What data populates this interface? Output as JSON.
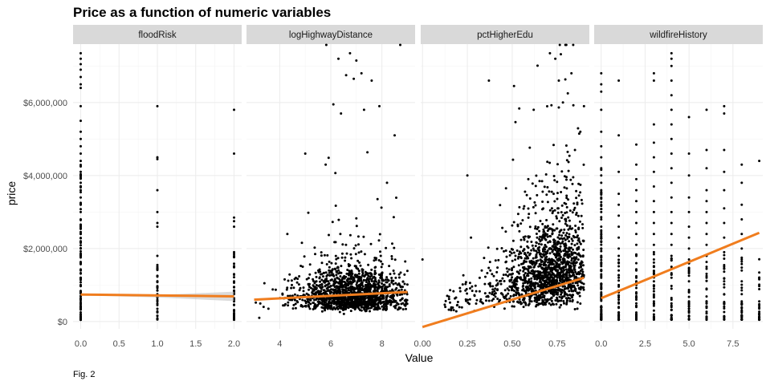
{
  "chart_data": {
    "type": "scatter",
    "title": "Price as a function of numeric variables",
    "xlabel": "Value",
    "ylabel": "price",
    "caption": "Fig. 2",
    "y_ticks": [
      {
        "value": 0,
        "label": "$0"
      },
      {
        "value": 2000000,
        "label": "$2,000,000"
      },
      {
        "value": 4000000,
        "label": "$4,000,000"
      },
      {
        "value": 6000000,
        "label": "$6,000,000"
      }
    ],
    "ylim": [
      -200000,
      7600000
    ],
    "fit_color": "#f07d1e",
    "band_color": "#bdbdbd",
    "point_color": "#000000",
    "panels": [
      {
        "name": "floodRisk",
        "xlim": [
          -0.1,
          2.1
        ],
        "x_ticks": [
          {
            "value": 0,
            "label": "0.0"
          },
          {
            "value": 0.5,
            "label": "0.5"
          },
          {
            "value": 1,
            "label": "1.0"
          },
          {
            "value": 1.5,
            "label": "1.5"
          },
          {
            "value": 2,
            "label": "2.0"
          }
        ],
        "fit": {
          "x": [
            0,
            2
          ],
          "y": [
            740000,
            690000
          ]
        },
        "band": {
          "x": [
            0,
            1,
            2
          ],
          "lower": [
            720000,
            660000,
            560000
          ],
          "upper": [
            760000,
            730000,
            820000
          ]
        },
        "groups": [
          {
            "x": 0,
            "y": [
              7350000,
              7200000,
              7050000,
              6900000,
              6700000,
              6500000,
              6400000,
              5900000,
              5500000,
              5200000,
              5000000,
              4800000,
              4600000,
              4400000,
              4250000,
              4100000,
              4000000,
              3800000,
              3600000,
              3400000,
              3200000,
              3000000,
              2800000,
              2600000,
              2400000,
              2200000,
              2000000,
              1800000,
              1600000,
              1400000,
              1200000,
              1000000,
              800000,
              600000,
              400000,
              200000,
              50000
            ]
          },
          {
            "x": 1,
            "y": [
              5900000,
              4500000,
              4450000,
              3600000,
              3000000,
              2700000,
              2600000,
              1800000,
              1500000,
              1250000,
              1100000,
              950000,
              850000,
              750000,
              650000,
              550000,
              450000,
              350000,
              250000
            ]
          },
          {
            "x": 2,
            "y": [
              5800000,
              4600000,
              2850000,
              2750000,
              2600000,
              1900000,
              1500000,
              1300000,
              1100000,
              950000,
              850000,
              750000,
              600000,
              450000,
              300000,
              150000
            ]
          }
        ]
      },
      {
        "name": "logHighwayDistance",
        "xlim": [
          2.7,
          9.3
        ],
        "x_ticks": [
          {
            "value": 4,
            "label": "4"
          },
          {
            "value": 6,
            "label": "6"
          },
          {
            "value": 8,
            "label": "8"
          }
        ],
        "fit": {
          "x": [
            3,
            9
          ],
          "y": [
            600000,
            810000
          ]
        },
        "cloud": {
          "x_min": 3.0,
          "x_max": 9.0,
          "x_center": 6.9,
          "x_spread": 1.1,
          "y_base": 150000,
          "y_median": 550000,
          "count": 1500
        },
        "outliers": [
          [
            6.3,
            7200000
          ],
          [
            6.75,
            7350000
          ],
          [
            7.0,
            7150000
          ],
          [
            6.6,
            6750000
          ],
          [
            6.9,
            6650000
          ],
          [
            7.2,
            6800000
          ],
          [
            7.6,
            6600000
          ],
          [
            6.1,
            5950000
          ],
          [
            6.4,
            5700000
          ],
          [
            7.3,
            5800000
          ],
          [
            7.9,
            5900000
          ],
          [
            8.5,
            5100000
          ],
          [
            5.0,
            4600000
          ],
          [
            4.3,
            2400000
          ],
          [
            3.4,
            1050000
          ],
          [
            3.2,
            100000
          ],
          [
            5.8,
            4300000
          ],
          [
            8.2,
            3800000
          ]
        ]
      },
      {
        "name": "pctHigherEdu",
        "xlim": [
          -0.01,
          0.93
        ],
        "x_ticks": [
          {
            "value": 0,
            "label": "0.00"
          },
          {
            "value": 0.25,
            "label": "0.25"
          },
          {
            "value": 0.5,
            "label": "0.50"
          },
          {
            "value": 0.75,
            "label": "0.75"
          }
        ],
        "fit": {
          "x": [
            0.0,
            0.9
          ],
          "y": [
            -150000,
            1200000
          ]
        },
        "cloud": {
          "x_min": 0.12,
          "x_max": 0.9,
          "x_center": 0.72,
          "x_spread": 0.14,
          "y_base": 150000,
          "y_slope": 1100000,
          "count": 1500
        },
        "outliers": [
          [
            0.0,
            1700000
          ],
          [
            0.25,
            4000000
          ],
          [
            0.27,
            2300000
          ],
          [
            0.37,
            6600000
          ],
          [
            0.51,
            6450000
          ],
          [
            0.71,
            7350000
          ],
          [
            0.74,
            7200000
          ],
          [
            0.76,
            6600000
          ],
          [
            0.83,
            6800000
          ],
          [
            0.59,
            3900000
          ],
          [
            0.81,
            6250000
          ],
          [
            0.62,
            5800000
          ],
          [
            0.9,
            5900000
          ],
          [
            0.88,
            5200000
          ],
          [
            0.85,
            4700000
          ]
        ]
      },
      {
        "name": "wildfireHistory",
        "xlim": [
          -0.4,
          9.2
        ],
        "x_ticks": [
          {
            "value": 0,
            "label": "0.0"
          },
          {
            "value": 2.5,
            "label": "2.5"
          },
          {
            "value": 5,
            "label": "5.0"
          },
          {
            "value": 7.5,
            "label": "7.5"
          }
        ],
        "fit": {
          "x": [
            0,
            9
          ],
          "y": [
            640000,
            2430000
          ]
        },
        "groups": [
          {
            "x": 0,
            "y": [
              6800000,
              6500000,
              6300000,
              5800000,
              5200000,
              4800000,
              4500000,
              4200000,
              4000000,
              3800000,
              3600000,
              3400000,
              3200000,
              3000000,
              2800000,
              2600000,
              2400000,
              2200000,
              2000000,
              1800000,
              1600000,
              1400000,
              1200000,
              1000000,
              800000,
              600000,
              400000,
              200000,
              50000
            ]
          },
          {
            "x": 1,
            "y": [
              6600000,
              5100000,
              4100000,
              3500000,
              3200000,
              2900000,
              2600000,
              2300000,
              2000000,
              1800000,
              1600000,
              1400000,
              1200000,
              1000000,
              800000,
              600000,
              400000,
              250000,
              100000
            ]
          },
          {
            "x": 2,
            "y": [
              4850000,
              4300000,
              3900000,
              3600000,
              3300000,
              3000000,
              2700000,
              2400000,
              2100000,
              1800000,
              1600000,
              1400000,
              1200000,
              1000000,
              800000,
              600000,
              400000,
              200000
            ]
          },
          {
            "x": 3,
            "y": [
              6800000,
              6600000,
              5400000,
              4900000,
              4500000,
              4100000,
              3700000,
              3300000,
              3000000,
              2700000,
              2400000,
              2100000,
              1900000,
              1700000,
              1500000,
              1300000,
              1100000,
              900000,
              700000,
              500000,
              300000
            ]
          },
          {
            "x": 4,
            "y": [
              7350000,
              7200000,
              7000000,
              6600000,
              6200000,
              5800000,
              5400000,
              5000000,
              4600000,
              4200000,
              3800000,
              3400000,
              3000000,
              2700000,
              2400000,
              2100000,
              1800000,
              1500000,
              1200000,
              900000,
              600000,
              400000
            ]
          },
          {
            "x": 5,
            "y": [
              5600000,
              4600000,
              4000000,
              3400000,
              3000000,
              2600000,
              2300000,
              2000000,
              1700000,
              1400000,
              1100000,
              800000,
              500000,
              150000
            ]
          },
          {
            "x": 6,
            "y": [
              5800000,
              4700000,
              4200000,
              3600000,
              3300000,
              3000000,
              2700000,
              2400000,
              2100000,
              1800000,
              1500000,
              1200000,
              900000,
              500000
            ]
          },
          {
            "x": 7,
            "y": [
              5900000,
              5700000,
              4700000,
              4100000,
              3600000,
              3100000,
              2700000,
              2300000,
              1900000,
              1500000,
              1100000,
              750000
            ]
          },
          {
            "x": 8,
            "y": [
              4300000,
              3800000,
              3200000,
              2800000,
              2400000,
              2000000,
              1700000,
              1400000,
              1100000,
              750000
            ]
          },
          {
            "x": 9,
            "y": [
              4400000
            ]
          }
        ]
      }
    ]
  }
}
